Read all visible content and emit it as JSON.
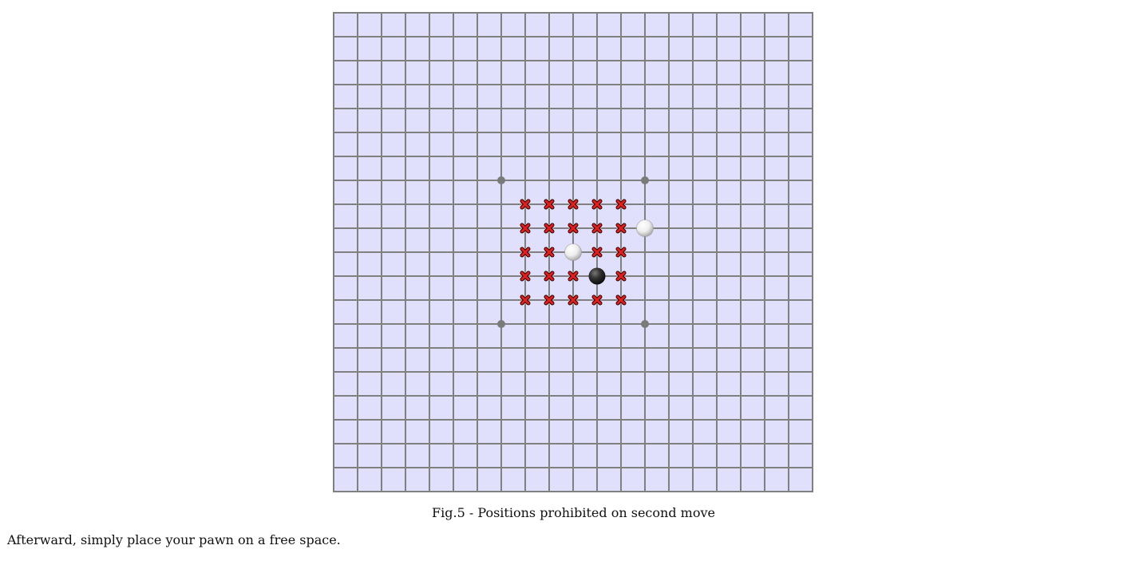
{
  "board": {
    "size": 20,
    "background_color": "#e0e0fc",
    "line_color": "#808080",
    "star_points": [
      [
        7,
        7
      ],
      [
        13,
        7
      ],
      [
        7,
        13
      ],
      [
        13,
        13
      ]
    ],
    "black_pawns": [
      [
        11,
        11
      ]
    ],
    "white_pawns": [
      [
        13,
        9
      ],
      [
        10,
        10
      ]
    ],
    "prohibited_positions": [
      [
        8,
        8
      ],
      [
        9,
        8
      ],
      [
        10,
        8
      ],
      [
        11,
        8
      ],
      [
        12,
        8
      ],
      [
        8,
        9
      ],
      [
        9,
        9
      ],
      [
        10,
        9
      ],
      [
        11,
        9
      ],
      [
        12,
        9
      ],
      [
        8,
        10
      ],
      [
        9,
        10
      ],
      [
        11,
        10
      ],
      [
        12,
        10
      ],
      [
        8,
        11
      ],
      [
        9,
        11
      ],
      [
        10,
        11
      ],
      [
        12,
        11
      ],
      [
        8,
        12
      ],
      [
        9,
        12
      ],
      [
        10,
        12
      ],
      [
        11,
        12
      ],
      [
        12,
        12
      ]
    ],
    "prohibited_marker_color": "#e02020",
    "prohibited_icon": "cross-icon"
  },
  "caption": "Fig.5 - Positions prohibited on second move",
  "instructions": "Afterward, simply place your pawn on a free space."
}
